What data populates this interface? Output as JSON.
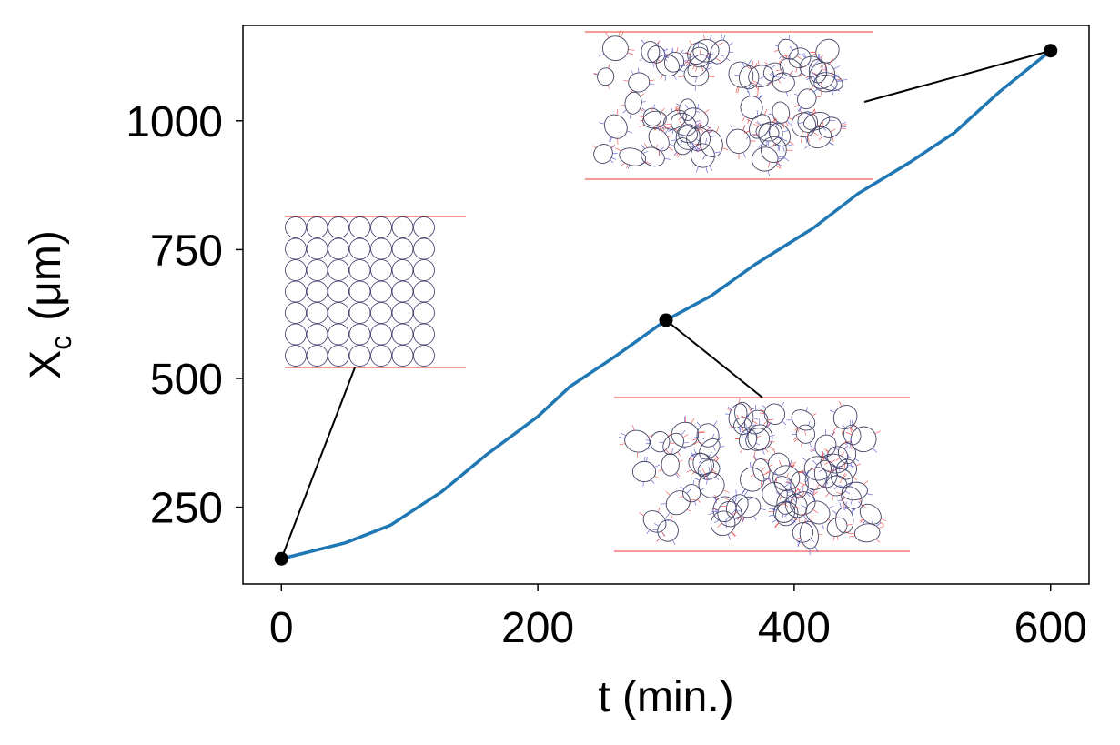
{
  "chart_data": {
    "type": "line",
    "xlabel": "t (min.)",
    "ylabel": {
      "main": "X",
      "sub": "c",
      "unit": "(μm)"
    },
    "x": [
      0,
      50,
      85,
      125,
      160,
      200,
      225,
      260,
      300,
      335,
      370,
      415,
      450,
      490,
      525,
      560,
      600
    ],
    "series": [
      {
        "color": "#1f77b4",
        "values": [
          150,
          181,
          215,
          280,
          352,
          426,
          484,
          542,
          613,
          660,
          722,
          792,
          859,
          919,
          977,
          1056,
          1136
        ]
      }
    ],
    "markers": {
      "color": "#000000",
      "x": [
        0,
        300,
        600
      ],
      "values": [
        150,
        613,
        1136
      ]
    },
    "xlim": [
      -30,
      630
    ],
    "ylim": [
      101,
      1185
    ],
    "xticks": [
      0,
      200,
      400,
      600
    ],
    "yticks": [
      250,
      500,
      750,
      1000
    ]
  }
}
